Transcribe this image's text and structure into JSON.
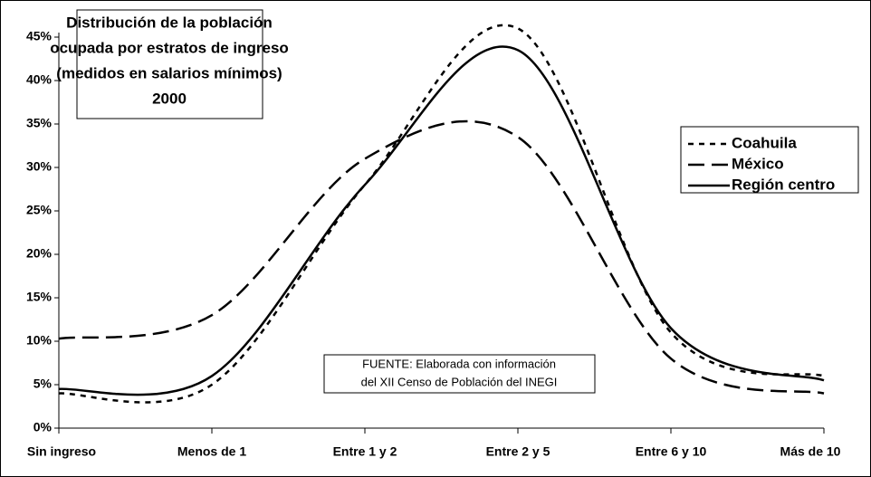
{
  "chart_data": {
    "type": "line",
    "title": [
      "Distribución de la población",
      "ocupada por estratos de ingreso",
      "(medidos en salarios mínimos)",
      "2000"
    ],
    "annotation": [
      "FUENTE: Elaborada con información",
      "del XII Censo de Población del INEGI"
    ],
    "categories": [
      "Sin ingreso",
      "Menos de 1",
      "Entre 1 y 2",
      "Entre 2 y 5",
      "Entre 6 y 10",
      "Más de 10"
    ],
    "series": [
      {
        "name": "Coahuila",
        "color": "#000000",
        "dash": "short",
        "values": [
          4,
          5,
          28,
          46,
          11,
          6
        ]
      },
      {
        "name": "México",
        "color": "#000000",
        "dash": "long",
        "values": [
          10.3,
          13,
          31,
          33.5,
          8,
          4
        ]
      },
      {
        "name": "Región centro",
        "color": "#000000",
        "dash": "solid",
        "values": [
          4.5,
          6,
          28,
          43.5,
          11.5,
          5.5
        ]
      }
    ],
    "ylim": [
      0,
      45
    ],
    "yticks": [
      {
        "value": 0,
        "label": "0%"
      },
      {
        "value": 5,
        "label": "5%"
      },
      {
        "value": 10,
        "label": "10%"
      },
      {
        "value": 15,
        "label": "15%"
      },
      {
        "value": 20,
        "label": "20%"
      },
      {
        "value": 25,
        "label": "25%"
      },
      {
        "value": 30,
        "label": "30%"
      },
      {
        "value": 35,
        "label": "35%"
      },
      {
        "value": 40,
        "label": "40%"
      },
      {
        "value": 45,
        "label": "45%"
      }
    ],
    "smooth": true
  }
}
